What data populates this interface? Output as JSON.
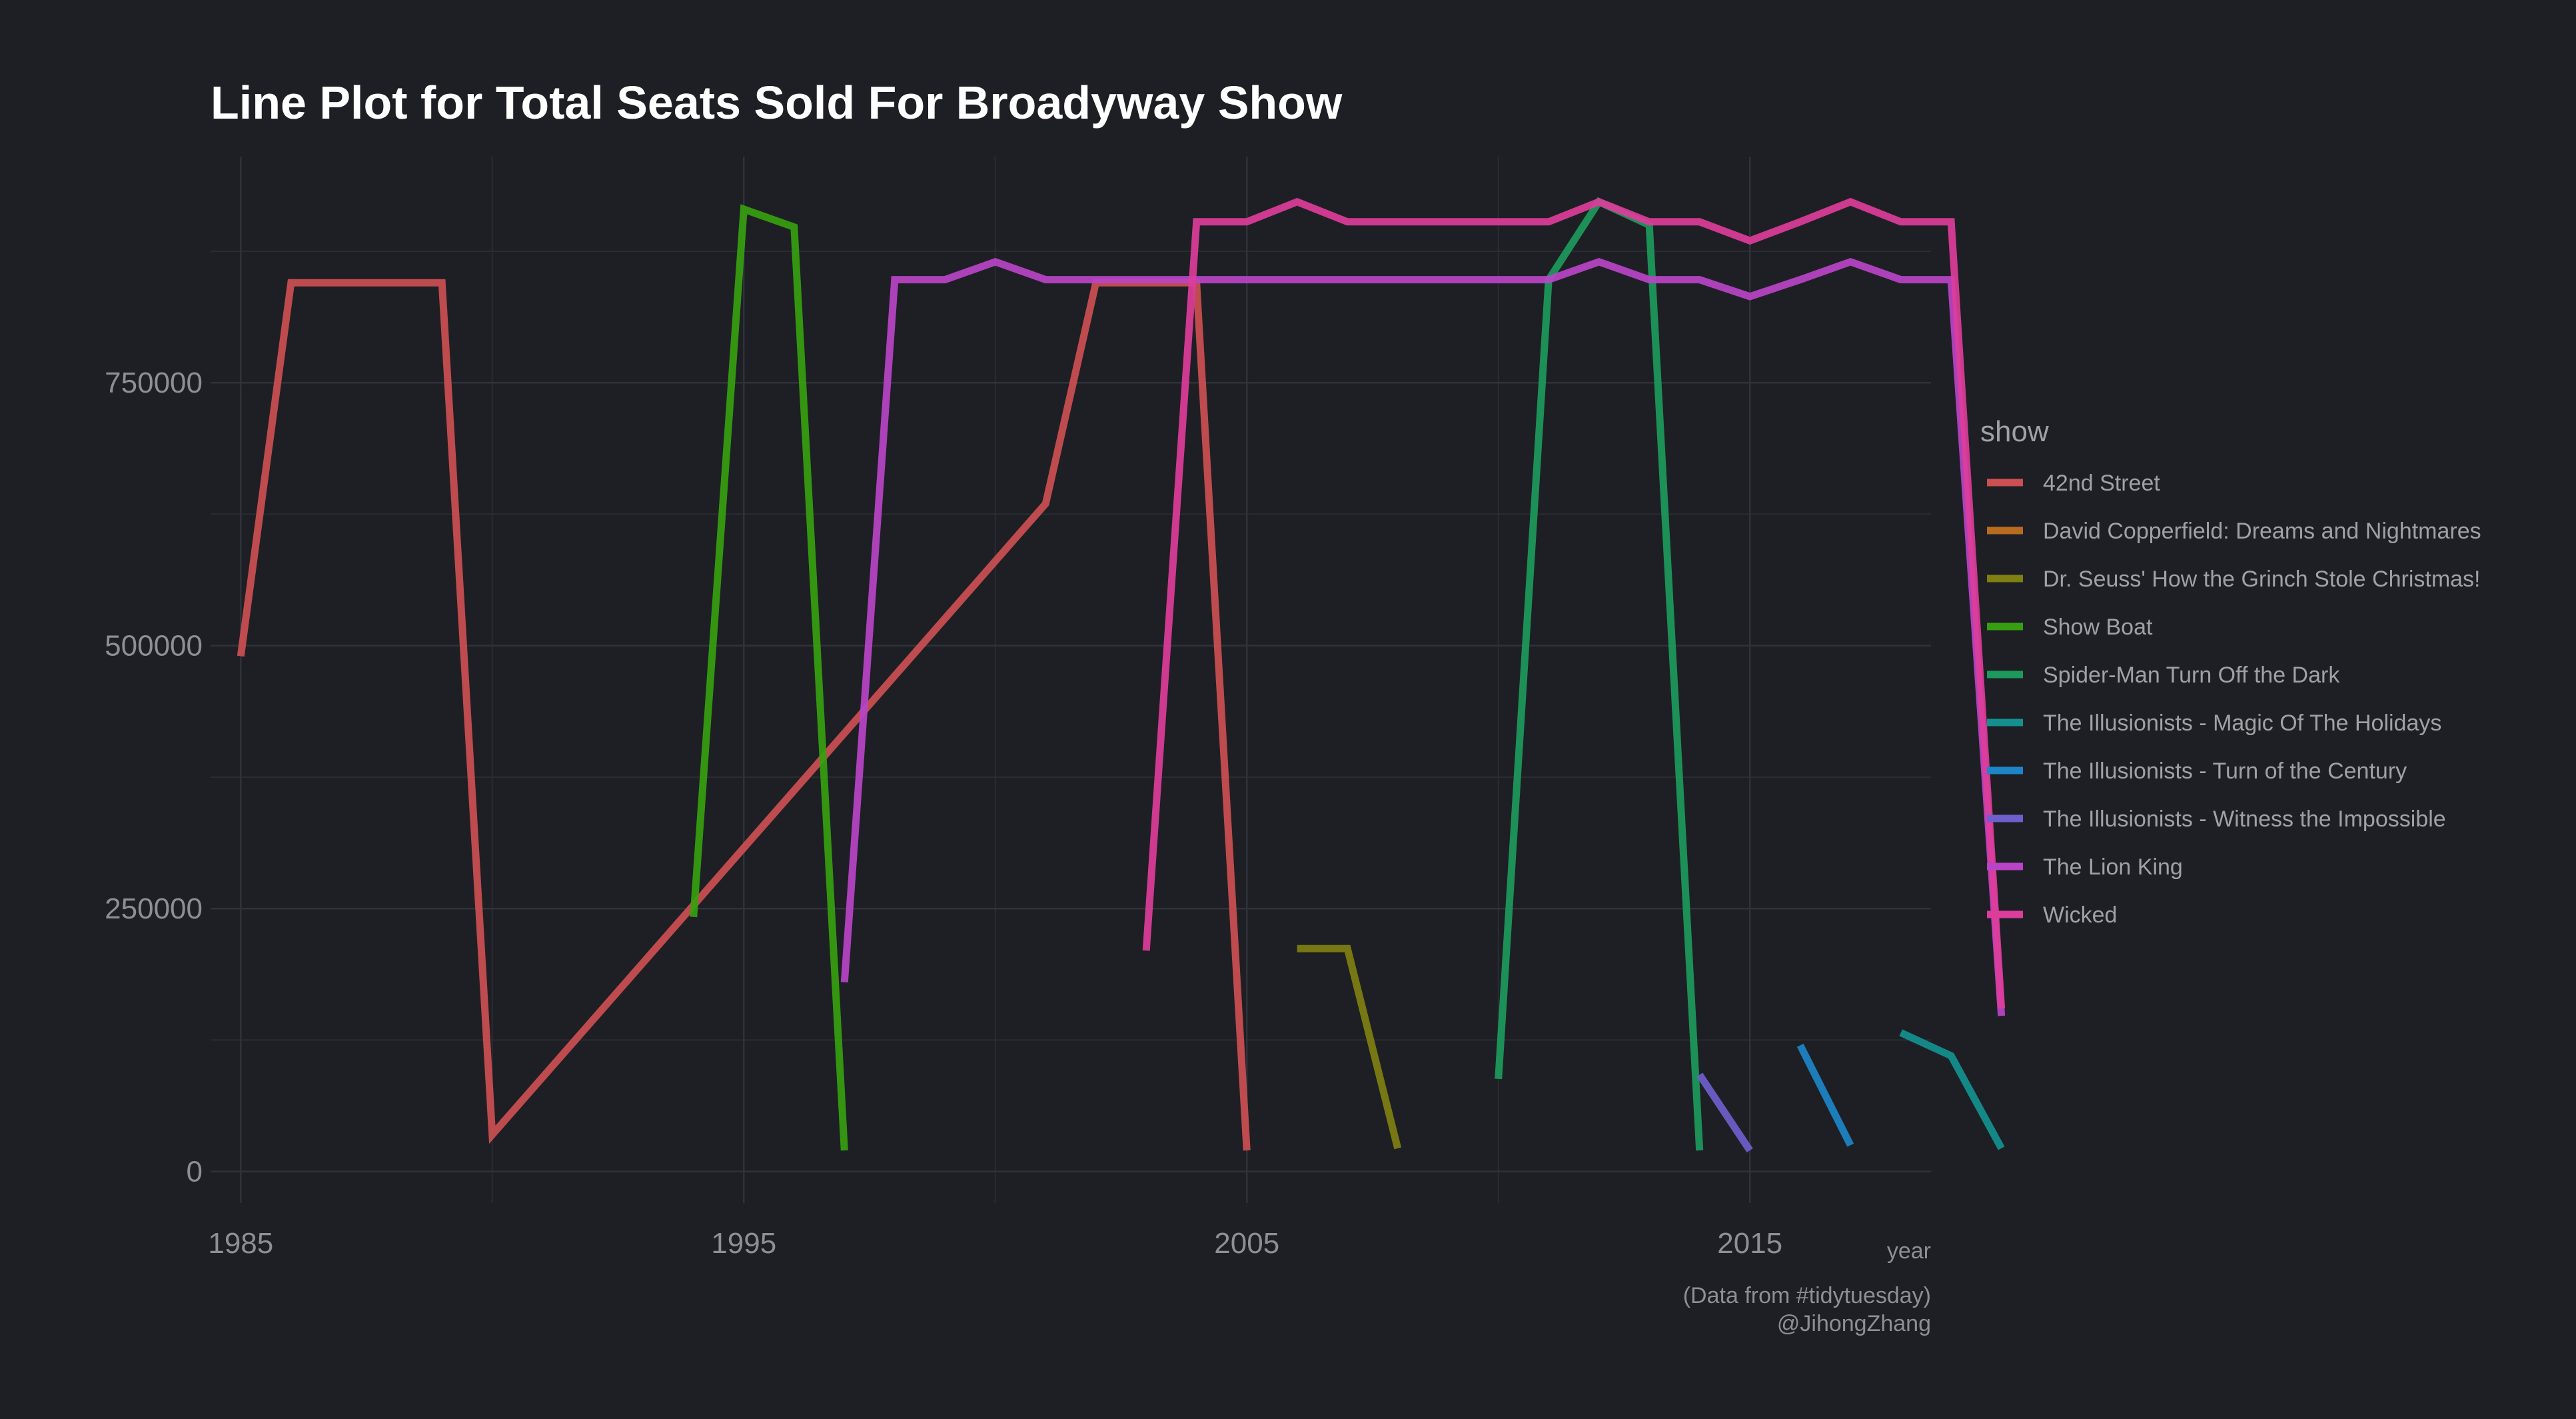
{
  "chart_data": {
    "type": "line",
    "title": "Line Plot for Total Seats Sold For Broadyway Show",
    "xlabel": "year",
    "ylabel": "",
    "xlim": [
      1984.4,
      2018.6
    ],
    "ylim": [
      -30000,
      965000
    ],
    "x_ticks": [
      1985,
      1995,
      2005,
      2015
    ],
    "x_tick_labels": [
      "1985",
      "1995",
      "2005",
      "2015"
    ],
    "y_ticks": [
      0,
      250000,
      500000,
      750000
    ],
    "y_tick_labels": [
      "0",
      "250000",
      "500000",
      "750000"
    ],
    "grid": true,
    "legend_title": "show",
    "legend_position": "right",
    "caption": [
      "(Data from #tidytuesday)",
      "@JihongZhang"
    ],
    "series": [
      {
        "name": "42nd Street",
        "color": "#cc4f52",
        "points": [
          [
            1985,
            490000
          ],
          [
            1986,
            845000
          ],
          [
            1987,
            845000
          ],
          [
            1988,
            845000
          ],
          [
            1989,
            845000
          ],
          [
            1990,
            35000
          ],
          [
            2001,
            635000
          ],
          [
            2002,
            845000
          ],
          [
            2003,
            845000
          ],
          [
            2004,
            845000
          ],
          [
            2005,
            20000
          ]
        ]
      },
      {
        "name": "David Copperfield: Dreams and Nightmares",
        "color": "#b86b1e",
        "points": []
      },
      {
        "name": "Dr. Seuss' How the Grinch Stole Christmas!",
        "color": "#7f7f12",
        "points": [
          [
            2006,
            212000
          ],
          [
            2007,
            212000
          ],
          [
            2008,
            22000
          ]
        ]
      },
      {
        "name": "Show Boat",
        "color": "#369f10",
        "points": [
          [
            1994,
            242000
          ],
          [
            1995,
            915000
          ],
          [
            1996,
            898000
          ],
          [
            1997,
            20000
          ]
        ]
      },
      {
        "name": "Spider-Man Turn Off the Dark",
        "color": "#1c9a5b",
        "points": [
          [
            2010,
            88000
          ],
          [
            2011,
            848000
          ],
          [
            2012,
            922000
          ],
          [
            2013,
            900000
          ],
          [
            2014,
            20000
          ]
        ]
      },
      {
        "name": "The Illusionists - Magic Of The Holidays",
        "color": "#14918f",
        "points": [
          [
            2018,
            132000
          ],
          [
            2019,
            110000
          ],
          [
            2020,
            22000
          ]
        ]
      },
      {
        "name": "The Illusionists - Turn of the Century",
        "color": "#1c86c8",
        "points": [
          [
            2016,
            120000
          ],
          [
            2017,
            25000
          ]
        ]
      },
      {
        "name": "The Illusionists - Witness the Impossible",
        "color": "#6e5fcc",
        "points": [
          [
            2014,
            92000
          ],
          [
            2015,
            20000
          ]
        ]
      },
      {
        "name": "The Lion King",
        "color": "#b944c8",
        "points": [
          [
            1997,
            180000
          ],
          [
            1998,
            848000
          ],
          [
            1999,
            848000
          ],
          [
            2000,
            865000
          ],
          [
            2001,
            848000
          ],
          [
            2002,
            848000
          ],
          [
            2003,
            848000
          ],
          [
            2004,
            848000
          ],
          [
            2005,
            848000
          ],
          [
            2006,
            848000
          ],
          [
            2007,
            848000
          ],
          [
            2008,
            848000
          ],
          [
            2009,
            848000
          ],
          [
            2010,
            848000
          ],
          [
            2011,
            848000
          ],
          [
            2012,
            865000
          ],
          [
            2013,
            848000
          ],
          [
            2014,
            848000
          ],
          [
            2015,
            832000
          ],
          [
            2016,
            848000
          ],
          [
            2017,
            865000
          ],
          [
            2018,
            848000
          ],
          [
            2019,
            848000
          ],
          [
            2020,
            148000
          ]
        ]
      },
      {
        "name": "Wicked",
        "color": "#dc3d9a",
        "points": [
          [
            2003,
            210000
          ],
          [
            2004,
            903000
          ],
          [
            2005,
            903000
          ],
          [
            2006,
            922000
          ],
          [
            2007,
            903000
          ],
          [
            2008,
            903000
          ],
          [
            2009,
            903000
          ],
          [
            2010,
            903000
          ],
          [
            2011,
            903000
          ],
          [
            2012,
            922000
          ],
          [
            2013,
            903000
          ],
          [
            2014,
            903000
          ],
          [
            2015,
            885000
          ],
          [
            2016,
            903000
          ],
          [
            2017,
            922000
          ],
          [
            2018,
            903000
          ],
          [
            2019,
            903000
          ],
          [
            2020,
            155000
          ]
        ]
      }
    ]
  }
}
